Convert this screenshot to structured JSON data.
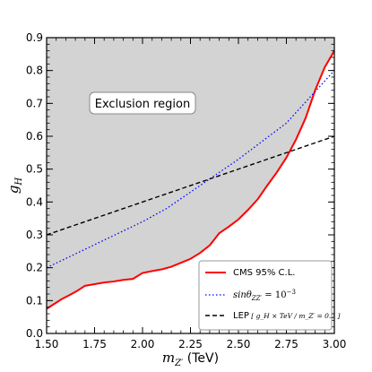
{
  "chart_data": {
    "type": "line",
    "xlabel": "m",
    "xlabel_sub": "Z′",
    "xlabel_unit": " (TeV)",
    "ylabel": "g",
    "ylabel_sub": "H",
    "xlim": [
      1.5,
      3.0
    ],
    "ylim": [
      0.0,
      0.9
    ],
    "x_ticks": [
      "1.50",
      "1.75",
      "2.00",
      "2.25",
      "2.50",
      "2.75",
      "3.00"
    ],
    "y_ticks": [
      "0.0",
      "0.1",
      "0.2",
      "0.3",
      "0.4",
      "0.5",
      "0.6",
      "0.7",
      "0.8",
      "0.9"
    ],
    "annotation": "Exclusion region",
    "shaded_region": {
      "bound_by": "CMS 95% C.L.",
      "fill_color": "#d3d3d3",
      "side": "above"
    },
    "legend_position": "lower-right",
    "series": [
      {
        "name": "CMS 95% C.L.",
        "color": "#ff0000",
        "style": "solid",
        "x": [
          1.5,
          1.54,
          1.58,
          1.62,
          1.66,
          1.7,
          1.75,
          1.8,
          1.85,
          1.9,
          1.95,
          2.0,
          2.05,
          2.1,
          2.15,
          2.2,
          2.25,
          2.3,
          2.35,
          2.38,
          2.4,
          2.45,
          2.5,
          2.55,
          2.6,
          2.65,
          2.7,
          2.75,
          2.8,
          2.85,
          2.9,
          2.95,
          3.0
        ],
        "y": [
          0.075,
          0.09,
          0.105,
          0.117,
          0.13,
          0.145,
          0.15,
          0.155,
          0.158,
          0.163,
          0.166,
          0.184,
          0.19,
          0.195,
          0.203,
          0.215,
          0.227,
          0.245,
          0.268,
          0.29,
          0.305,
          0.325,
          0.347,
          0.376,
          0.408,
          0.45,
          0.49,
          0.535,
          0.59,
          0.655,
          0.74,
          0.81,
          0.86
        ]
      },
      {
        "name": "sinθ_ZZ′ = 10⁻³",
        "color": "#0000ff",
        "style": "dotted",
        "x": [
          1.5,
          1.625,
          1.75,
          1.875,
          2.0,
          2.125,
          2.25,
          2.375,
          2.5,
          2.625,
          2.75,
          2.875,
          3.0
        ],
        "y": [
          0.2,
          0.235,
          0.27,
          0.305,
          0.34,
          0.38,
          0.43,
          0.48,
          0.53,
          0.585,
          0.64,
          0.72,
          0.8
        ]
      },
      {
        "name": "LEP [g_H × TeV / m_Z′ = 0.2]",
        "color": "#000000",
        "style": "dashed",
        "x": [
          1.5,
          3.0
        ],
        "y": [
          0.3,
          0.6
        ]
      }
    ],
    "legend": [
      {
        "series": 0,
        "text": "CMS 95% C.L."
      },
      {
        "series": 1,
        "text_main": "sinθ",
        "text_sub": "ZZ′",
        "text_rest": " = 10",
        "text_sup": "−3"
      },
      {
        "series": 2,
        "text_main": "LEP",
        "text_bracket": "[ g_H × TeV / m_Z′ = 0.2 ]"
      }
    ]
  }
}
